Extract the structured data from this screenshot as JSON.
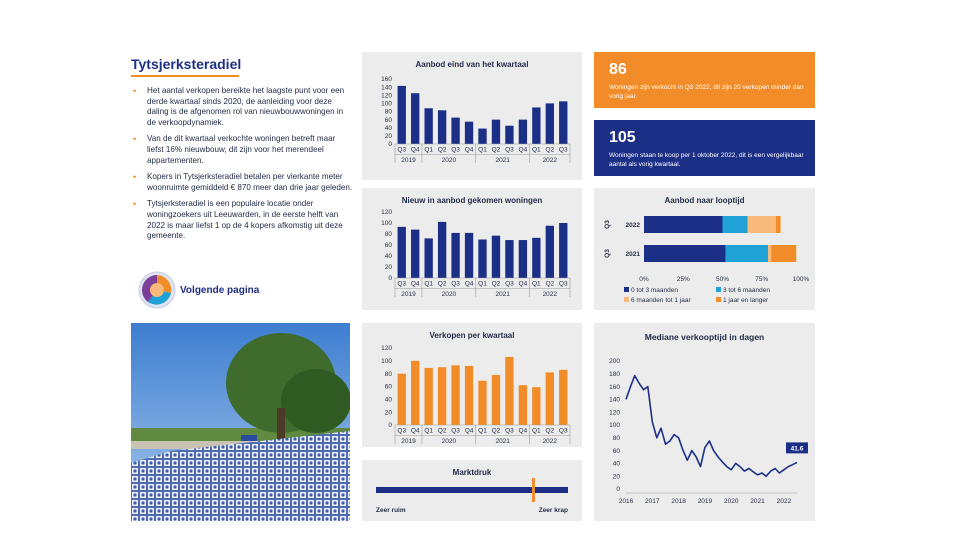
{
  "left": {
    "title": "Tytsjerksteradiel",
    "bullets": [
      "Het aantal verkopen bereikte het laagste punt voor een derde kwartaal sinds 2020, de aanleiding voor deze daling is de afgenomen rol van nieuwbouwwoningen in de verkoopdynamiek.",
      "Van de dit kwartaal verkochte woningen betreft maar liefst 16% nieuwbouw, dit zijn voor het merendeel appartementen.",
      "Kopers in Tytsjerksteradiel betalen per vierkante meter woonruimte gemiddeld € 870 meer dan drie jaar geleden.",
      "Tytsjerksteradiel is een populaire locatie onder woningzoekers uit Leeuwarden, in de eerste helft van 2022 is maar liefst 1 op de 4 kopers afkomstig uit deze gemeente."
    ],
    "next_page": "Volgende pagina"
  },
  "colors": {
    "navy": "#1c2f87",
    "orange": "#f28c28",
    "cyan": "#1fa2d6",
    "peach": "#f8b97a",
    "panel": "#ececec"
  },
  "kpi": [
    {
      "number": "86",
      "text": "Woningen zijn verkocht in Q3 2022, dit zijn 20 verkopen minder dan vorig jaar."
    },
    {
      "number": "105",
      "text": "Woningen staan te koop per 1 oktober 2022, dit is een vergelijkbaar aantal als vorig kwartaal."
    }
  ],
  "chart_data": [
    {
      "id": "aanbod",
      "type": "bar",
      "title": "Aanbod eind van het kwartaal",
      "categories": [
        "Q3",
        "Q4",
        "Q1",
        "Q2",
        "Q3",
        "Q4",
        "Q1",
        "Q2",
        "Q3",
        "Q4",
        "Q1",
        "Q2",
        "Q3"
      ],
      "years": [
        {
          "label": "2019",
          "span": 2
        },
        {
          "label": "2020",
          "span": 4
        },
        {
          "label": "2021",
          "span": 4
        },
        {
          "label": "2022",
          "span": 3
        }
      ],
      "values": [
        143,
        125,
        88,
        83,
        65,
        55,
        38,
        60,
        45,
        60,
        90,
        100,
        105
      ],
      "ylim": [
        0,
        160
      ],
      "yticks": [
        0,
        20,
        40,
        60,
        80,
        100,
        120,
        140,
        160
      ],
      "color": "#1c2f87"
    },
    {
      "id": "nieuw",
      "type": "bar",
      "title": "Nieuw in aanbod gekomen woningen",
      "categories": [
        "Q3",
        "Q4",
        "Q1",
        "Q2",
        "Q3",
        "Q4",
        "Q1",
        "Q2",
        "Q3",
        "Q4",
        "Q1",
        "Q2",
        "Q3"
      ],
      "years": [
        {
          "label": "2019",
          "span": 2
        },
        {
          "label": "2020",
          "span": 4
        },
        {
          "label": "2021",
          "span": 4
        },
        {
          "label": "2022",
          "span": 3
        }
      ],
      "values": [
        93,
        88,
        72,
        102,
        82,
        82,
        70,
        77,
        69,
        69,
        73,
        95,
        100
      ],
      "ylim": [
        0,
        120
      ],
      "yticks": [
        0,
        10,
        20,
        30,
        40,
        50,
        60,
        70,
        80,
        90,
        100,
        110,
        120
      ],
      "tick_labels_every": 2,
      "color": "#1c2f87"
    },
    {
      "id": "verkopen",
      "type": "bar",
      "title": "Verkopen per kwartaal",
      "categories": [
        "Q3",
        "Q4",
        "Q1",
        "Q2",
        "Q3",
        "Q4",
        "Q1",
        "Q2",
        "Q3",
        "Q4",
        "Q1",
        "Q2",
        "Q3"
      ],
      "years": [
        {
          "label": "2019",
          "span": 2
        },
        {
          "label": "2020",
          "span": 4
        },
        {
          "label": "2021",
          "span": 4
        },
        {
          "label": "2022",
          "span": 3
        }
      ],
      "values": [
        80,
        100,
        89,
        90,
        93,
        92,
        69,
        78,
        106,
        62,
        59,
        82,
        86
      ],
      "ylim": [
        0,
        120
      ],
      "yticks": [
        0,
        20,
        40,
        60,
        80,
        100,
        120
      ],
      "color": "#f28c28"
    },
    {
      "id": "looptijd",
      "type": "bar",
      "stacked": true,
      "horizontal": true,
      "title": "Aanbod naar looptijd",
      "group_label": "Q3",
      "categories": [
        "2022",
        "2021"
      ],
      "series": [
        {
          "name": "0 tot 3 maanden",
          "values": [
            50,
            52
          ],
          "color": "#1c2f87"
        },
        {
          "name": "3 tot 6 maanden",
          "values": [
            16,
            27
          ],
          "color": "#1fa2d6"
        },
        {
          "name": "6 maanden tot 1 jaar",
          "values": [
            18,
            2
          ],
          "color": "#f8b97a"
        },
        {
          "name": "1 jaar en langer",
          "values": [
            3,
            16
          ],
          "color": "#f28c28"
        }
      ],
      "xlim": [
        0,
        100
      ],
      "xticks": [
        "0%",
        "25%",
        "50%",
        "75%",
        "100%"
      ]
    },
    {
      "id": "marktdruk",
      "type": "gauge",
      "title": "Marktdruk",
      "value": 0.82,
      "min_label": "Zeer ruim",
      "max_label": "Zeer krap"
    },
    {
      "id": "mediaan",
      "type": "line",
      "title": "Mediane verkooptijd in dagen",
      "x": [
        2016.0,
        2016.17,
        2016.33,
        2016.5,
        2016.67,
        2016.83,
        2017.0,
        2017.17,
        2017.33,
        2017.5,
        2017.67,
        2017.83,
        2018.0,
        2018.17,
        2018.33,
        2018.5,
        2018.67,
        2018.83,
        2019.0,
        2019.17,
        2019.33,
        2019.5,
        2019.67,
        2019.83,
        2020.0,
        2020.17,
        2020.33,
        2020.5,
        2020.67,
        2020.83,
        2021.0,
        2021.17,
        2021.33,
        2021.5,
        2021.67,
        2021.83,
        2022.0,
        2022.17,
        2022.33,
        2022.5
      ],
      "values": [
        140,
        160,
        177,
        165,
        155,
        160,
        105,
        80,
        95,
        70,
        75,
        85,
        80,
        60,
        45,
        60,
        50,
        35,
        65,
        75,
        60,
        50,
        42,
        35,
        30,
        40,
        35,
        28,
        32,
        27,
        22,
        25,
        20,
        28,
        32,
        25,
        30,
        35,
        38,
        41.6
      ],
      "last_label": "41.6",
      "ylim": [
        0,
        200
      ],
      "yticks": [
        0,
        20,
        40,
        60,
        80,
        100,
        120,
        140,
        160,
        180,
        200
      ],
      "xticks": [
        "2016",
        "2017",
        "2018",
        "2019",
        "2020",
        "2021",
        "2022"
      ],
      "color": "#1c2f87"
    }
  ]
}
